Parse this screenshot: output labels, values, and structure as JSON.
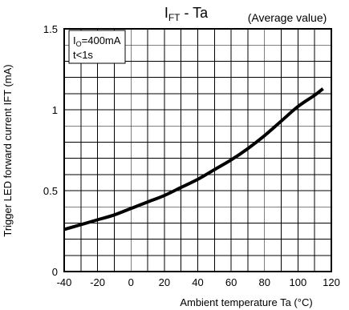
{
  "chart_data": {
    "type": "line",
    "title_main": "I",
    "title_sub": "FT",
    "title_rest": " - Ta",
    "subtitle": "(Average value)",
    "xlabel": "Ambient temperature Ta (°C)",
    "ylabel": "Trigger LED forward current IFT (mA)",
    "xlim": [
      -40,
      120
    ],
    "ylim": [
      0,
      1.5
    ],
    "x_ticks": [
      -40,
      -20,
      0,
      20,
      40,
      60,
      80,
      100,
      120
    ],
    "x_tick_labels": [
      "-40",
      "-20",
      "0",
      "20",
      "40",
      "60",
      "80",
      "100",
      "120"
    ],
    "y_ticks": [
      0,
      0.5,
      1,
      1.5
    ],
    "y_tick_labels": [
      "0",
      "0.5",
      "1",
      "1.5"
    ],
    "x_grid_step": 10,
    "y_grid_step": 0.1,
    "grid": true,
    "annotation": {
      "line1_main": "I",
      "line1_sub": "O",
      "line1_rest": "=400mA",
      "line2": "t<1s"
    },
    "series": [
      {
        "color": "#000000",
        "x": [
          -40,
          -30,
          -20,
          -10,
          0,
          10,
          20,
          30,
          40,
          50,
          60,
          70,
          80,
          90,
          100,
          110,
          115
        ],
        "y": [
          0.26,
          0.29,
          0.32,
          0.35,
          0.39,
          0.43,
          0.47,
          0.52,
          0.57,
          0.63,
          0.69,
          0.76,
          0.84,
          0.93,
          1.02,
          1.09,
          1.13
        ]
      }
    ]
  }
}
